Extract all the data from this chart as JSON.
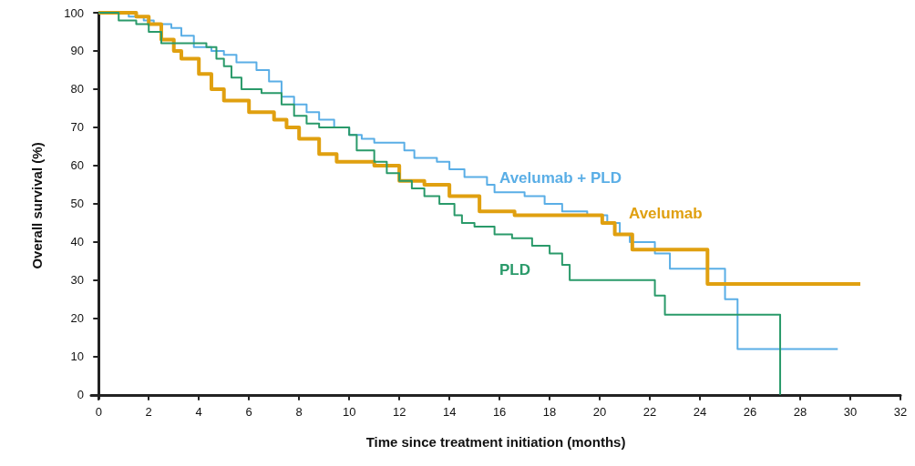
{
  "chart_data": {
    "type": "step",
    "xlabel": "Time since treatment initiation (months)",
    "ylabel": "Overall survival (%)",
    "xlim": [
      -0.3,
      32
    ],
    "xticks": [
      0,
      2,
      4,
      6,
      8,
      10,
      12,
      14,
      16,
      18,
      20,
      22,
      24,
      26,
      28,
      30,
      32
    ],
    "ylim": [
      -1,
      100
    ],
    "yticks": [
      0,
      10,
      20,
      30,
      40,
      50,
      60,
      70,
      80,
      90,
      100
    ],
    "grid": false,
    "legend": false,
    "marker": "none",
    "line_style": "solid",
    "series": [
      {
        "name": "Avelumab + PLD",
        "color": "#5aaee6",
        "x": [
          0,
          1.2,
          1.8,
          2.2,
          2.9,
          3.3,
          3.8,
          4.5,
          5,
          5.5,
          6.3,
          6.8,
          7.3,
          7.8,
          8.3,
          8.8,
          9.4,
          10,
          10.5,
          11,
          12.2,
          12.6,
          13.5,
          14,
          14.6,
          15.5,
          15.8,
          17,
          17.8,
          18.5,
          19.5,
          20.3,
          20.8,
          21.2,
          22.2,
          22.8,
          25,
          25.5,
          29.5
        ],
        "values": [
          100,
          99,
          98,
          97,
          96,
          94,
          91,
          90,
          89,
          87,
          85,
          82,
          78,
          76,
          74,
          72,
          70,
          68,
          67,
          66,
          64,
          62,
          61,
          59,
          57,
          55,
          53,
          52,
          50,
          48,
          47,
          45,
          42,
          40,
          37,
          33,
          25,
          12,
          12
        ]
      },
      {
        "name": "Avelumab",
        "color": "#e0a010",
        "x": [
          0,
          1.5,
          2,
          2.5,
          3,
          3.3,
          4,
          4.5,
          5,
          6,
          7,
          7.5,
          8,
          8.8,
          9.5,
          11,
          12,
          13,
          14,
          15.2,
          16.6,
          20.1,
          20.6,
          21.3,
          24.3,
          30.4
        ],
        "values": [
          100,
          99,
          97,
          93,
          90,
          88,
          84,
          80,
          77,
          74,
          72,
          70,
          67,
          63,
          61,
          60,
          56,
          55,
          52,
          48,
          47,
          45,
          42,
          38,
          29,
          29
        ]
      },
      {
        "name": "PLD",
        "color": "#2a9a6a",
        "x": [
          0,
          0.8,
          1.5,
          2,
          2.5,
          4.3,
          4.7,
          5,
          5.3,
          5.7,
          6.5,
          7.3,
          7.8,
          8.3,
          8.8,
          10,
          10.3,
          11,
          11.5,
          12,
          12.5,
          13,
          13.6,
          14.2,
          14.5,
          15,
          15.8,
          16.5,
          17.3,
          18,
          18.5,
          18.8,
          22.2,
          22.6,
          27.2
        ],
        "values": [
          100,
          98,
          97,
          95,
          92,
          91,
          88,
          86,
          83,
          80,
          79,
          76,
          73,
          71,
          70,
          68,
          64,
          61,
          58,
          56,
          54,
          52,
          50,
          47,
          45,
          44,
          42,
          41,
          39,
          37,
          34,
          30,
          26,
          21,
          0
        ]
      }
    ]
  }
}
